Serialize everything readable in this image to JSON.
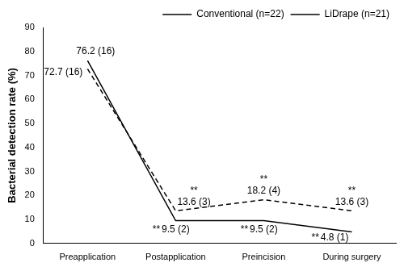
{
  "chart_data": {
    "type": "line",
    "y_label": "Bacterial detection rate (%)",
    "categories": [
      "Preapplication",
      "Postapplication",
      "Preincision",
      "During surgery"
    ],
    "series": [
      {
        "name": "Conventional (n=22)",
        "color": "#000000",
        "line_style": "dashed",
        "marker": "none",
        "values": [
          72.7,
          13.6,
          18.2,
          13.6
        ],
        "value_labels": [
          "72.7 (16)",
          "13.6 (3)",
          "18.2 (4)",
          "13.6 (3)"
        ],
        "annotations": [
          null,
          "**",
          "**",
          "**"
        ]
      },
      {
        "name": "LiDrape (n=21)",
        "color": "#000000",
        "line_style": "solid",
        "marker": "none",
        "values": [
          76.2,
          9.5,
          9.5,
          4.8
        ],
        "value_labels": [
          "76.2 (16)",
          "9.5 (2)",
          "9.5 (2)",
          "4.8 (1)"
        ],
        "annotations": [
          null,
          "**",
          "**",
          "**"
        ]
      }
    ],
    "ylim": [
      0,
      90
    ],
    "yticks": [
      0,
      10,
      20,
      30,
      40,
      50,
      60,
      70,
      80,
      90
    ],
    "grid": false,
    "legend": "upper right",
    "data_labels": true
  }
}
